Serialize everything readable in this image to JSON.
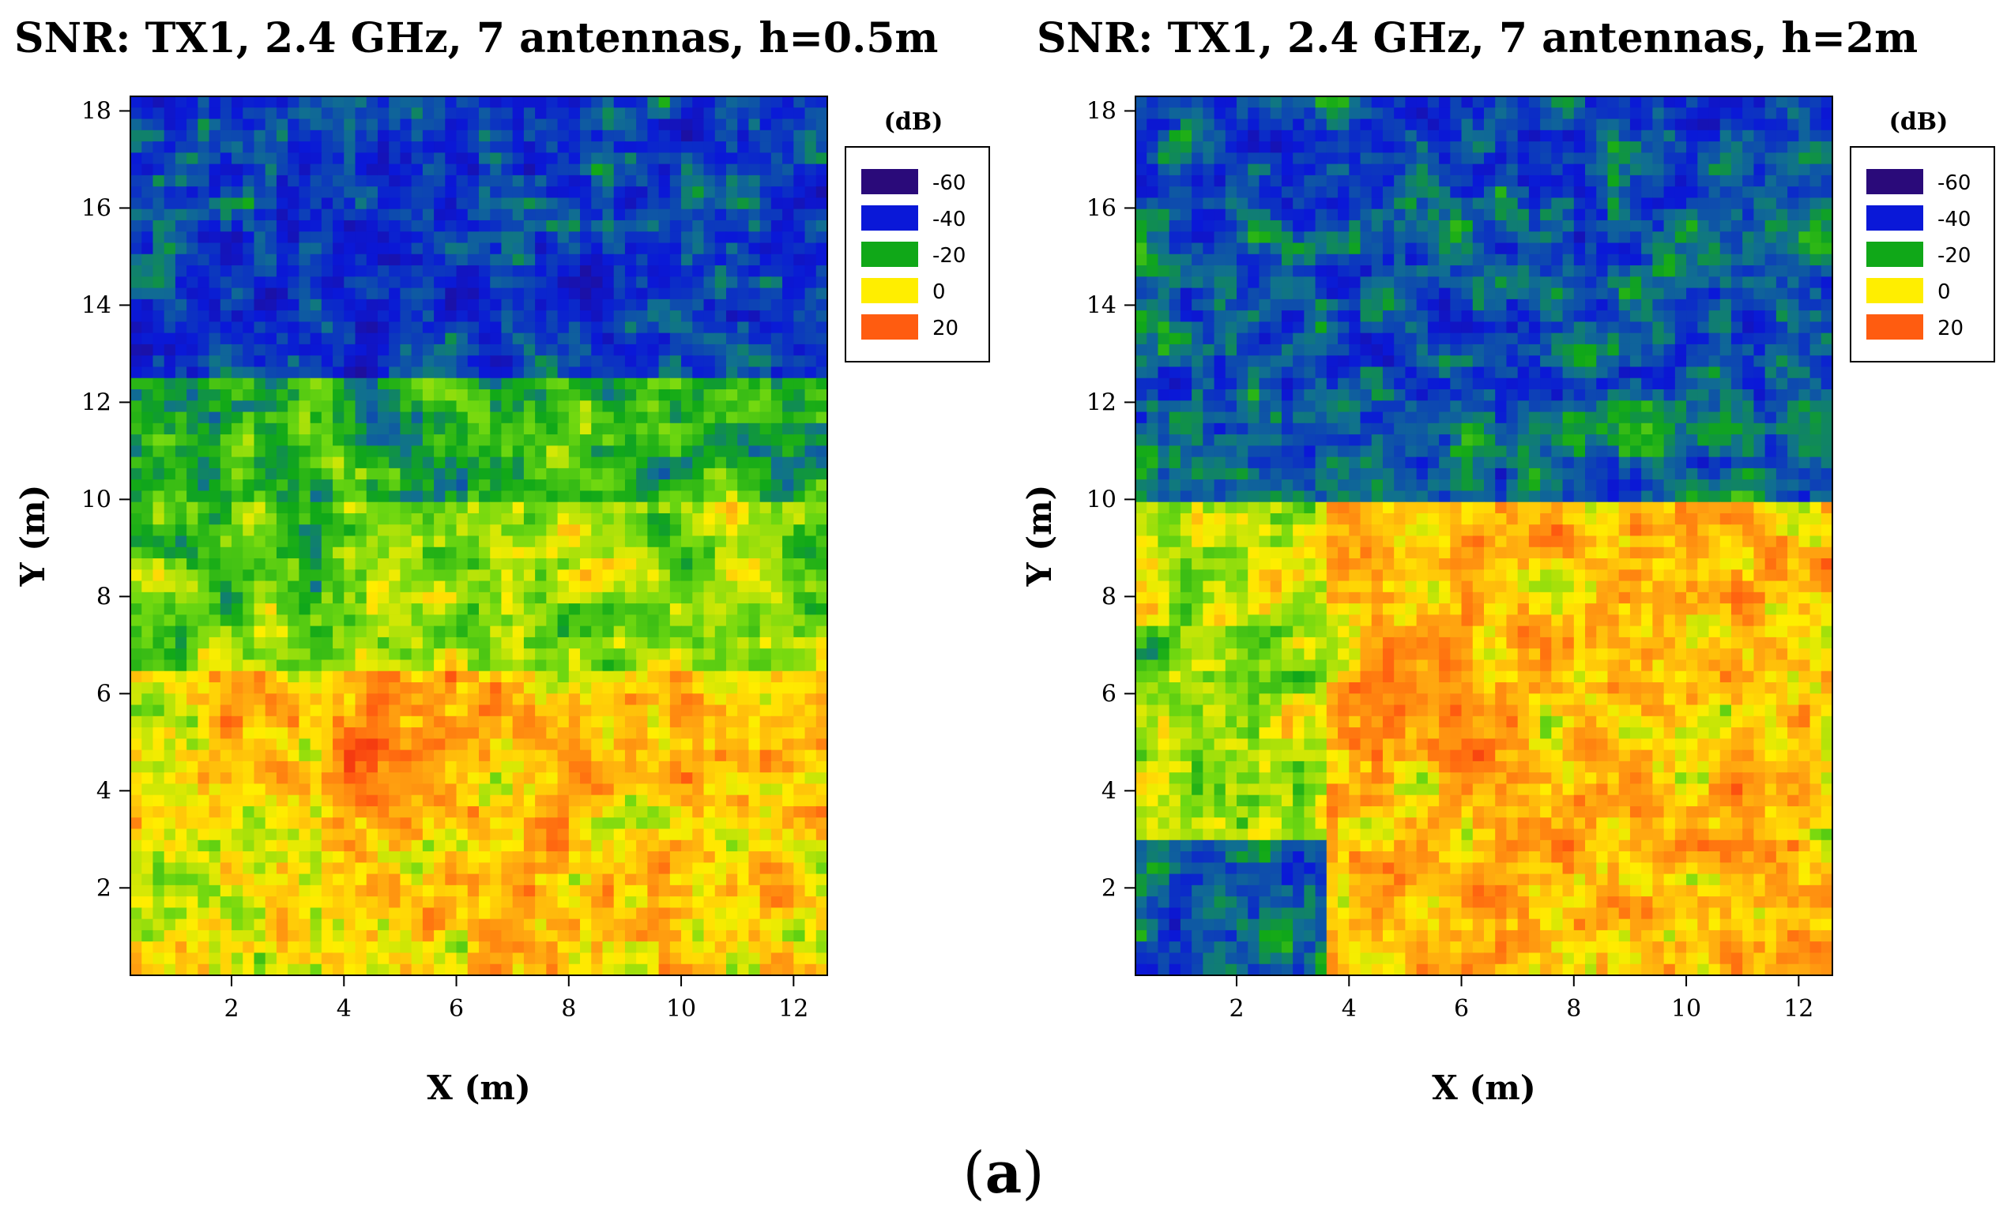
{
  "chart_data": [
    {
      "type": "heatmap",
      "title": "SNR: TX1, 2.4 GHz, 7 antennas, h=0.5m",
      "xlabel": "X (m)",
      "ylabel": "Y (m)",
      "xlim": [
        0.2,
        12.6
      ],
      "ylim": [
        0.2,
        18.3
      ],
      "xticks": [
        2,
        4,
        6,
        8,
        10,
        12
      ],
      "yticks": [
        2,
        4,
        6,
        8,
        10,
        12,
        14,
        16,
        18
      ],
      "colorbar": {
        "title": "(dB)",
        "levels": [
          {
            "label": "-60",
            "value": -60,
            "color": "#2a0a7a"
          },
          {
            "label": "-40",
            "value": -40,
            "color": "#0a18d8"
          },
          {
            "label": "-20",
            "value": -20,
            "color": "#10a818"
          },
          {
            "label": "0",
            "value": 0,
            "color": "#ffee00"
          },
          {
            "label": "20",
            "value": 20,
            "color": "#ff5c10"
          }
        ]
      },
      "regions": [
        {
          "x": [
            0.2,
            12.6
          ],
          "y": [
            12.5,
            18.3
          ],
          "snr_db": -35
        },
        {
          "x": [
            0.2,
            12.6
          ],
          "y": [
            10.0,
            12.5
          ],
          "snr_db": -18
        },
        {
          "x": [
            3.7,
            12.6
          ],
          "y": [
            6.5,
            10.0
          ],
          "snr_db": -8
        },
        {
          "x": [
            0.2,
            3.7
          ],
          "y": [
            6.5,
            10.0
          ],
          "snr_db": -12
        },
        {
          "x": [
            0.2,
            3.7
          ],
          "y": [
            0.2,
            6.5
          ],
          "snr_db": -2
        },
        {
          "x": [
            3.7,
            12.6
          ],
          "y": [
            0.2,
            6.5
          ],
          "snr_db": 4
        }
      ],
      "hotspots": [
        {
          "x": 4.6,
          "y": 4.6,
          "snr_db": 20
        },
        {
          "x": 2.3,
          "y": 5.0,
          "snr_db": 8
        },
        {
          "x": 10.5,
          "y": 4.5,
          "snr_db": 8
        }
      ]
    },
    {
      "type": "heatmap",
      "title": "SNR: TX1, 2.4 GHz, 7 antennas, h=2m",
      "xlabel": "X (m)",
      "ylabel": "Y (m)",
      "xlim": [
        0.2,
        12.6
      ],
      "ylim": [
        0.2,
        18.3
      ],
      "xticks": [
        2,
        4,
        6,
        8,
        10,
        12
      ],
      "yticks": [
        2,
        4,
        6,
        8,
        10,
        12,
        14,
        16,
        18
      ],
      "colorbar": {
        "title": "(dB)",
        "levels": [
          {
            "label": "-60",
            "value": -60,
            "color": "#2a0a7a"
          },
          {
            "label": "-40",
            "value": -40,
            "color": "#0a18d8"
          },
          {
            "label": "-20",
            "value": -20,
            "color": "#10a818"
          },
          {
            "label": "0",
            "value": 0,
            "color": "#ffee00"
          },
          {
            "label": "20",
            "value": 20,
            "color": "#ff5c10"
          }
        ]
      },
      "regions": [
        {
          "x": [
            0.2,
            12.6
          ],
          "y": [
            12.0,
            18.3
          ],
          "snr_db": -32
        },
        {
          "x": [
            0.2,
            12.6
          ],
          "y": [
            10.0,
            12.0
          ],
          "snr_db": -28
        },
        {
          "x": [
            0.2,
            3.7
          ],
          "y": [
            3.0,
            10.0
          ],
          "snr_db": -6
        },
        {
          "x": [
            0.2,
            3.7
          ],
          "y": [
            0.2,
            3.0
          ],
          "snr_db": -30
        },
        {
          "x": [
            3.7,
            12.6
          ],
          "y": [
            0.2,
            10.0
          ],
          "snr_db": 5
        }
      ],
      "hotspots": [
        {
          "x": 5.0,
          "y": 5.5,
          "snr_db": 12
        },
        {
          "x": 7.0,
          "y": 3.5,
          "snr_db": 10
        },
        {
          "x": 10.5,
          "y": 8.2,
          "snr_db": 8
        }
      ]
    }
  ],
  "caption": {
    "open": "(",
    "letter": "a",
    "close": ")"
  }
}
